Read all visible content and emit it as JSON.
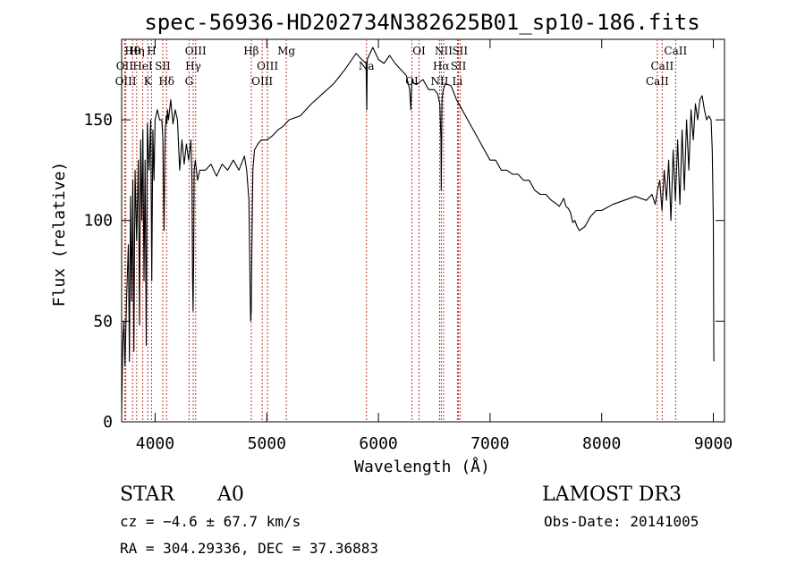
{
  "chart_data": {
    "type": "line",
    "title": "spec-56936-HD202734N382625B01_sp10-186.fits",
    "xlabel": "Wavelength (Å)",
    "ylabel": "Flux (relative)",
    "xlim": [
      3700,
      9100
    ],
    "ylim": [
      0,
      190
    ],
    "xticks": [
      4000,
      5000,
      6000,
      7000,
      8000,
      9000
    ],
    "yticks": [
      0,
      50,
      100,
      150
    ],
    "grid": false,
    "series": [
      {
        "color": "#000000",
        "x": [
          3700,
          3710,
          3720,
          3730,
          3745,
          3760,
          3770,
          3780,
          3790,
          3800,
          3810,
          3820,
          3835,
          3850,
          3860,
          3870,
          3880,
          3890,
          3900,
          3910,
          3920,
          3930,
          3945,
          3960,
          3970,
          3980,
          3990,
          4000,
          4020,
          4040,
          4060,
          4070,
          4080,
          4090,
          4100,
          4105,
          4110,
          4120,
          4140,
          4160,
          4180,
          4200,
          4220,
          4240,
          4260,
          4280,
          4300,
          4320,
          4330,
          4335,
          4340,
          4345,
          4350,
          4360,
          4380,
          4400,
          4450,
          4500,
          4550,
          4600,
          4650,
          4700,
          4750,
          4800,
          4820,
          4840,
          4850,
          4855,
          4861,
          4867,
          4875,
          4890,
          4920,
          4950,
          5000,
          5050,
          5100,
          5150,
          5200,
          5300,
          5400,
          5500,
          5600,
          5700,
          5800,
          5850,
          5890,
          5893,
          5896,
          5900,
          5950,
          6000,
          6050,
          6100,
          6150,
          6200,
          6250,
          6280,
          6290,
          6300,
          6320,
          6350,
          6400,
          6450,
          6500,
          6530,
          6550,
          6560,
          6563,
          6566,
          6570,
          6580,
          6600,
          6650,
          6700,
          6750,
          6800,
          6850,
          6900,
          6950,
          7000,
          7050,
          7100,
          7150,
          7200,
          7250,
          7300,
          7350,
          7400,
          7450,
          7500,
          7550,
          7600,
          7620,
          7640,
          7660,
          7680,
          7700,
          7720,
          7740,
          7760,
          7780,
          7800,
          7850,
          7900,
          7950,
          8000,
          8100,
          8200,
          8300,
          8400,
          8450,
          8480,
          8500,
          8520,
          8540,
          8560,
          8580,
          8600,
          8620,
          8640,
          8660,
          8680,
          8700,
          8720,
          8740,
          8760,
          8780,
          8800,
          8820,
          8840,
          8860,
          8880,
          8900,
          8920,
          8940,
          8960,
          8980,
          8990,
          9000,
          9005
        ],
        "y": [
          5,
          38,
          50,
          28,
          62,
          88,
          30,
          112,
          60,
          120,
          35,
          125,
          90,
          130,
          48,
          140,
          100,
          145,
          70,
          130,
          38,
          148,
          125,
          150,
          70,
          145,
          120,
          150,
          155,
          150,
          150,
          140,
          95,
          145,
          152,
          148,
          155,
          150,
          160,
          148,
          155,
          150,
          125,
          140,
          128,
          138,
          130,
          140,
          120,
          70,
          55,
          80,
          125,
          130,
          120,
          125,
          125,
          128,
          122,
          128,
          125,
          130,
          125,
          132,
          125,
          110,
          70,
          50,
          55,
          90,
          125,
          135,
          138,
          140,
          140,
          142,
          145,
          147,
          150,
          152,
          158,
          163,
          168,
          175,
          183,
          180,
          178,
          165,
          155,
          180,
          186,
          180,
          178,
          182,
          178,
          175,
          172,
          165,
          155,
          170,
          168,
          168,
          170,
          165,
          165,
          163,
          158,
          140,
          115,
          135,
          160,
          165,
          168,
          167,
          160,
          155,
          150,
          145,
          140,
          135,
          130,
          130,
          125,
          125,
          123,
          123,
          120,
          120,
          115,
          113,
          113,
          110,
          108,
          107,
          109,
          111,
          107,
          106,
          104,
          99,
          100,
          97,
          95,
          97,
          102,
          105,
          105,
          108,
          110,
          112,
          110,
          113,
          108,
          115,
          120,
          105,
          125,
          110,
          130,
          100,
          135,
          110,
          140,
          108,
          145,
          115,
          150,
          125,
          155,
          140,
          158,
          150,
          160,
          162,
          155,
          150,
          152,
          150,
          135,
          100,
          30
        ]
      }
    ],
    "lines": [
      {
        "label": "Hθ",
        "x": 3798
      },
      {
        "label": "OII",
        "x": 3727
      },
      {
        "label": "OIII",
        "x": 3737
      },
      {
        "label": "Hη",
        "x": 3835
      },
      {
        "label": "HeI",
        "x": 3889
      },
      {
        "label": "K",
        "x": 3934
      },
      {
        "label": "H",
        "x": 3968
      },
      {
        "label": "SII",
        "x": 4068
      },
      {
        "label": "Hδ",
        "x": 4102
      },
      {
        "label": "OIII",
        "x": 4363
      },
      {
        "label": "Hγ",
        "x": 4341
      },
      {
        "label": "G",
        "x": 4304
      },
      {
        "label": "Hβ",
        "x": 4861
      },
      {
        "label": "OIII",
        "x": 5007
      },
      {
        "label": "OIII",
        "x": 4959
      },
      {
        "label": "Mg",
        "x": 5175
      },
      {
        "label": "Na",
        "x": 5893
      },
      {
        "label": "OI",
        "x": 6300
      },
      {
        "label": "OI",
        "x": 6364
      },
      {
        "label": "Hα",
        "x": 6563
      },
      {
        "label": "NII",
        "x": 6548
      },
      {
        "label": "NII",
        "x": 6584
      },
      {
        "label": "SII",
        "x": 6717
      },
      {
        "label": "Li",
        "x": 6708
      },
      {
        "label": "SII",
        "x": 6731
      },
      {
        "label": "CaII",
        "x": 8542
      },
      {
        "label": "CaII",
        "x": 8498
      },
      {
        "label": "CaII",
        "x": 8662
      }
    ],
    "annotations": {
      "class": "STAR",
      "subclass": "A0",
      "survey": "LAMOST DR3",
      "cz": "cz = −4.6 ± 67.7 km/s",
      "obsdate": "Obs-Date: 20141005",
      "coords": "RA = 304.29336, DEC =  37.36883"
    }
  }
}
